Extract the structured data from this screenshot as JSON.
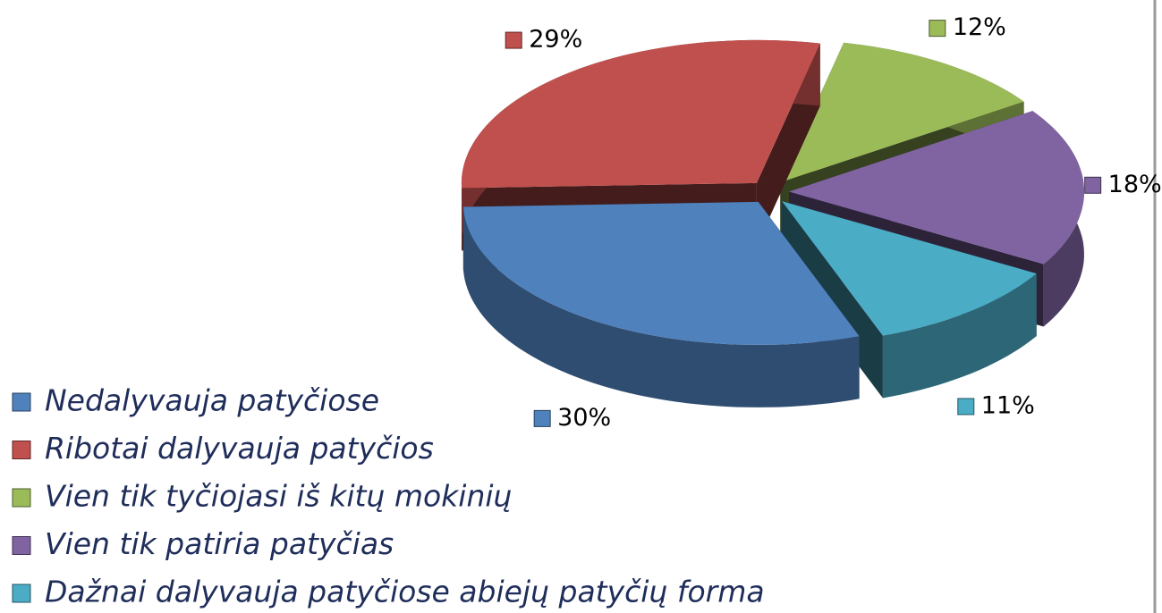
{
  "chart_data": {
    "type": "pie",
    "categories": [
      "Nedalyvauja patyčiose",
      "Ribotai dalyvauja patyčios",
      "Vien tik tyčiojasi iš kitų mokinių",
      "Vien tik patiria patyčias",
      "Dažnai dalyvauja patyčiose abiejų patyčių forma"
    ],
    "values": [
      30,
      29,
      12,
      18,
      11
    ],
    "value_labels": [
      "30%",
      "29%",
      "12%",
      "18%",
      "11%"
    ],
    "colors": [
      "#4f81bd",
      "#c0504d",
      "#9bbb59",
      "#8064a2",
      "#4bacc6"
    ],
    "legend": "bottom-left"
  }
}
